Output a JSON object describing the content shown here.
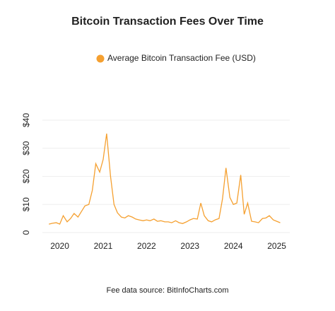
{
  "chart_data": {
    "type": "line",
    "title": "Bitcoin Transaction Fees Over Time",
    "footnote": "Fee data source: BitInfoCharts.com",
    "series": [
      {
        "name": "Average Bitcoin Transaction Fee (USD)",
        "color": "#f5a030",
        "x": [
          2019.75,
          2019.83,
          2019.92,
          2020.0,
          2020.08,
          2020.17,
          2020.25,
          2020.33,
          2020.42,
          2020.5,
          2020.58,
          2020.67,
          2020.75,
          2020.83,
          2020.92,
          2021.0,
          2021.08,
          2021.17,
          2021.25,
          2021.33,
          2021.42,
          2021.5,
          2021.58,
          2021.67,
          2021.75,
          2021.83,
          2021.92,
          2022.0,
          2022.08,
          2022.17,
          2022.25,
          2022.33,
          2022.42,
          2022.5,
          2022.58,
          2022.67,
          2022.75,
          2022.83,
          2022.92,
          2023.0,
          2023.08,
          2023.17,
          2023.25,
          2023.33,
          2023.42,
          2023.5,
          2023.58,
          2023.67,
          2023.75,
          2023.83,
          2023.92,
          2024.0,
          2024.08,
          2024.17,
          2024.25,
          2024.33,
          2024.42,
          2024.5,
          2024.58,
          2024.67,
          2024.75,
          2024.83,
          2024.92,
          2025.0,
          2025.08
        ],
        "values": [
          3.0,
          3.3,
          3.5,
          3.0,
          6.0,
          3.8,
          5.0,
          6.8,
          5.5,
          7.5,
          9.5,
          10,
          15,
          24.5,
          21.5,
          26,
          35.2,
          20,
          10,
          7,
          5.5,
          5.2,
          6,
          5.5,
          4.8,
          4.5,
          4.2,
          4.5,
          4.2,
          4.8,
          4.0,
          4.2,
          3.8,
          3.8,
          3.5,
          4.2,
          3.5,
          3.2,
          3.8,
          4.5,
          5.0,
          4.8,
          10.5,
          6,
          4.2,
          3.8,
          4.5,
          5,
          12,
          23,
          12.5,
          10,
          10.5,
          20.5,
          6.5,
          10.5,
          4.0,
          3.8,
          3.5,
          5.0,
          5.2,
          6.0,
          4.5,
          4.0,
          3.5
        ]
      }
    ],
    "xlim": [
      2019.6,
      2025.3
    ],
    "xticks": [
      2020,
      2021,
      2022,
      2023,
      2024,
      2025
    ],
    "ylim": [
      0,
      40
    ],
    "yticks": [
      0,
      {
        "value": 10,
        "label": "$10"
      },
      {
        "value": 20,
        "label": "$20"
      },
      {
        "value": 30,
        "label": "$30"
      },
      {
        "value": 40,
        "label": "$40"
      }
    ],
    "grid": true
  }
}
